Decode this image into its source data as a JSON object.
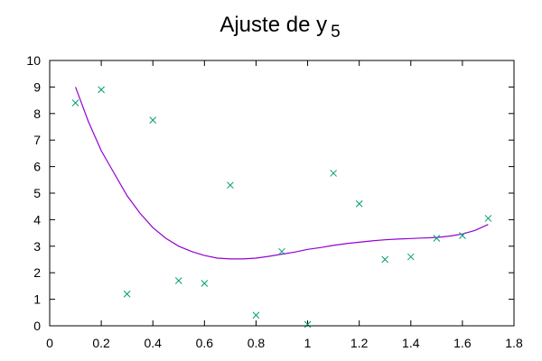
{
  "chart_data": {
    "type": "scatter",
    "title_main": "Ajuste de y",
    "title_sub": "5",
    "xlabel": "",
    "ylabel": "",
    "xlim": [
      0,
      1.8
    ],
    "ylim": [
      0,
      10
    ],
    "x_ticks": [
      "0",
      "0.2",
      "0.4",
      "0.6",
      "0.8",
      "1",
      "1.2",
      "1.4",
      "1.6",
      "1.8"
    ],
    "y_ticks": [
      "0",
      "1",
      "2",
      "3",
      "4",
      "5",
      "6",
      "7",
      "8",
      "9",
      "10"
    ],
    "grid": false,
    "colors": {
      "points": "#009e73",
      "fit": "#9400d3"
    },
    "series": [
      {
        "kind": "points",
        "x": [
          0.1,
          0.2,
          0.3,
          0.4,
          0.5,
          0.6,
          0.7,
          0.8,
          0.9,
          1.0,
          1.1,
          1.2,
          1.3,
          1.4,
          1.5,
          1.6,
          1.7
        ],
        "y": [
          8.4,
          8.9,
          1.2,
          7.75,
          1.7,
          1.6,
          5.3,
          0.4,
          2.8,
          0.05,
          5.75,
          4.6,
          2.5,
          2.6,
          3.3,
          3.4,
          4.05
        ]
      },
      {
        "kind": "fit",
        "x": [
          0.1,
          0.15,
          0.2,
          0.25,
          0.3,
          0.35,
          0.4,
          0.45,
          0.5,
          0.55,
          0.6,
          0.65,
          0.7,
          0.75,
          0.8,
          0.85,
          0.9,
          0.95,
          1.0,
          1.05,
          1.1,
          1.15,
          1.2,
          1.25,
          1.3,
          1.35,
          1.4,
          1.45,
          1.5,
          1.55,
          1.6,
          1.65,
          1.7
        ],
        "y": [
          9.0,
          7.7,
          6.6,
          5.75,
          4.9,
          4.25,
          3.7,
          3.3,
          3.0,
          2.8,
          2.65,
          2.55,
          2.52,
          2.52,
          2.55,
          2.62,
          2.7,
          2.78,
          2.88,
          2.95,
          3.03,
          3.1,
          3.15,
          3.2,
          3.24,
          3.27,
          3.29,
          3.31,
          3.33,
          3.38,
          3.46,
          3.6,
          3.82
        ]
      }
    ]
  }
}
